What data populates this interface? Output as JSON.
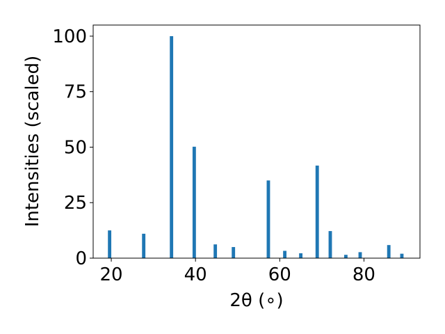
{
  "chart_data": {
    "type": "bar",
    "title": "",
    "xlabel": "2θ (∘)",
    "ylabel": "Intensities (scaled)",
    "xlim": [
      15.7,
      93.3
    ],
    "ylim": [
      0,
      105
    ],
    "xticks": [
      20,
      40,
      60,
      80
    ],
    "yticks": [
      0,
      25,
      50,
      75,
      100
    ],
    "bar_width": 0.8,
    "grid": false,
    "legend": "none",
    "color": "#1f77b4",
    "x": [
      19.6,
      27.7,
      34.3,
      39.7,
      44.7,
      49.0,
      57.3,
      61.2,
      65.0,
      68.9,
      72.0,
      75.7,
      79.1,
      85.9,
      89.0
    ],
    "values": [
      12.5,
      11.0,
      100,
      50.2,
      6.2,
      5.0,
      35.0,
      3.3,
      2.2,
      41.7,
      12.2,
      1.5,
      2.7,
      5.9,
      2.0
    ]
  }
}
